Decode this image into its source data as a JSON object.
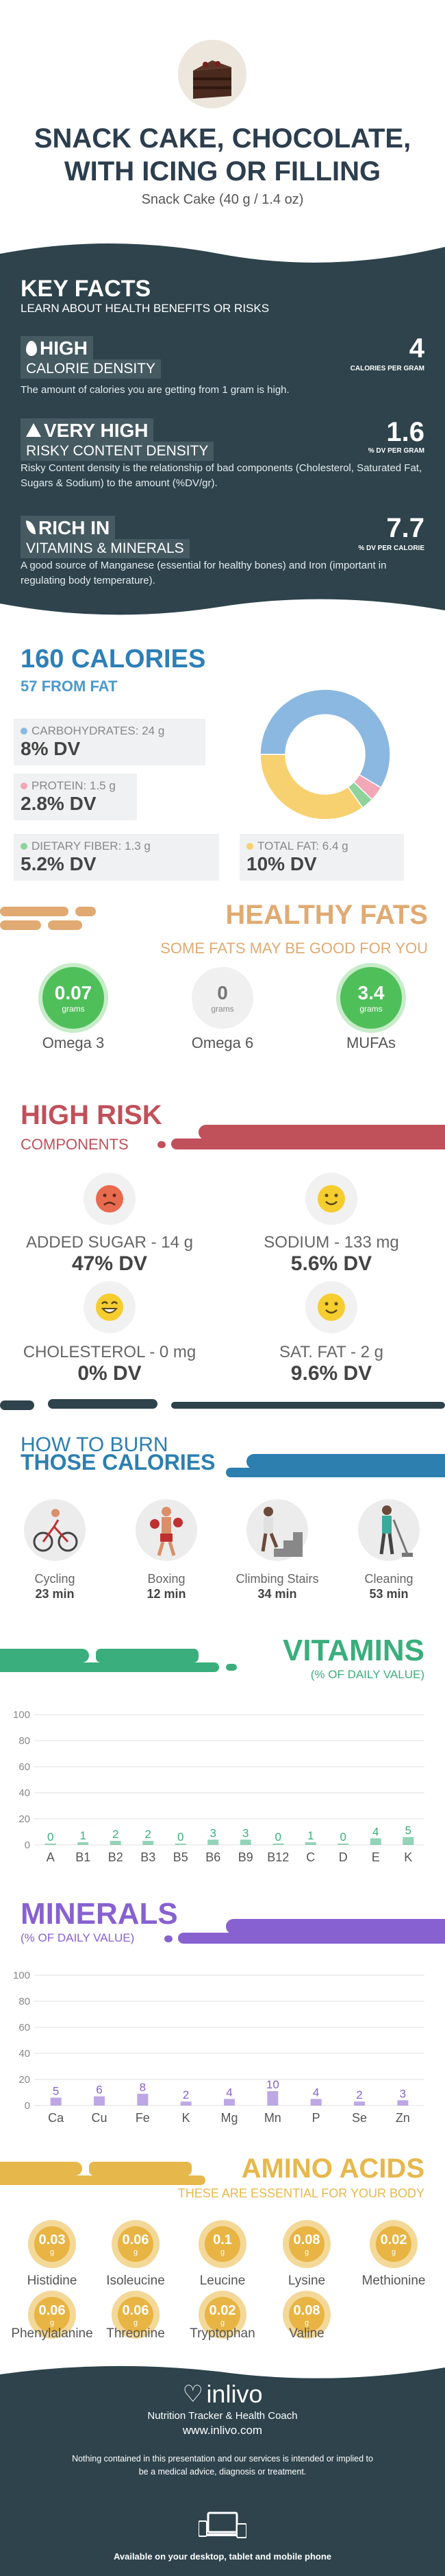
{
  "header": {
    "title_line1": "SNACK CAKE, CHOCOLATE,",
    "title_line2": "WITH ICING OR FILLING",
    "subtitle": "Snack Cake (40 g / 1.4 oz)"
  },
  "key_facts": {
    "title": "KEY FACTS",
    "subtitle": "LEARN ABOUT HEALTH BENEFITS OR RISKS",
    "facts": [
      {
        "heading": "HIGH",
        "subheading": "CALORIE DENSITY",
        "value": "4",
        "unit": "CALORIES PER GRAM",
        "description": "The amount of calories you are getting from 1 gram is high.",
        "icon": "flame-icon"
      },
      {
        "heading": "VERY HIGH",
        "subheading": "RISKY CONTENT DENSITY",
        "value": "1.6",
        "unit": "% DV PER GRAM",
        "description": "Risky Content density is the relationship of bad components (Cholesterol, Saturated Fat, Sugars & Sodium) to the amount (%DV/gr).",
        "icon": "warning-icon"
      },
      {
        "heading": "RICH  IN",
        "subheading": "VITAMINS & MINERALS",
        "value": "7.7",
        "unit": "% DV PER CALORIE",
        "description": "A good source of Manganese (essential for healthy bones) and Iron (important in regulating body temperature).",
        "icon": "leaf-icon"
      }
    ]
  },
  "calories": {
    "title": "160 CALORIES",
    "subtitle": "57 FROM FAT",
    "nutrients": [
      {
        "name": "CARBOHYDRATES: 24 g",
        "dv": "8% DV",
        "color": "#8ab8e0"
      },
      {
        "name": "PROTEIN: 1.5 g",
        "dv": "2.8% DV",
        "color": "#f2a7b7"
      },
      {
        "name": "DIETARY FIBER: 1.3 g",
        "dv": "5.2% DV",
        "color": "#8fd39b"
      },
      {
        "name": "TOTAL FAT: 6.4 g",
        "dv": "10% DV",
        "color": "#f7d070"
      }
    ],
    "donut": [
      {
        "name": "carbohydrates",
        "value": 96,
        "color": "#8ab8e0"
      },
      {
        "name": "protein",
        "value": 6,
        "color": "#f2a7b7"
      },
      {
        "name": "fiber",
        "value": 5,
        "color": "#8fd39b"
      },
      {
        "name": "fat",
        "value": 57,
        "color": "#f7d070"
      }
    ]
  },
  "healthy_fats": {
    "title": "HEALTHY FATS",
    "subtitle": "SOME FATS MAY BE GOOD FOR YOU",
    "items": [
      {
        "value": "0.07",
        "unit": "grams",
        "label": "Omega 3",
        "color": "#4fbf5a"
      },
      {
        "value": "0",
        "unit": "grams",
        "label": "Omega 6",
        "color": "#ececec"
      },
      {
        "value": "3.4",
        "unit": "grams",
        "label": "MUFAs",
        "color": "#4fbf5a"
      }
    ]
  },
  "high_risk": {
    "title": "HIGH RISK",
    "subtitle": "COMPONENTS",
    "items": [
      {
        "name": "ADDED SUGAR - 14 g",
        "dv": "47% DV",
        "face": "sad-face-icon",
        "color": "#e86a4f"
      },
      {
        "name": "SODIUM - 133 mg",
        "dv": "5.6% DV",
        "face": "smile-face-icon",
        "color": "#f5cd2f"
      },
      {
        "name": "CHOLESTEROL - 0 mg",
        "dv": "0% DV",
        "face": "grin-face-icon",
        "color": "#f5cd2f"
      },
      {
        "name": "SAT. FAT - 2 g",
        "dv": "9.6% DV",
        "face": "smile-face-icon",
        "color": "#f5cd2f"
      }
    ]
  },
  "burn": {
    "title1": "HOW TO BURN",
    "title2": "THOSE CALORIES",
    "activities": [
      {
        "name": "Cycling",
        "minutes": "23 min",
        "icon": "cycling-icon"
      },
      {
        "name": "Boxing",
        "minutes": "12 min",
        "icon": "boxing-icon"
      },
      {
        "name": "Climbing Stairs",
        "minutes": "34 min",
        "icon": "stairs-icon"
      },
      {
        "name": "Cleaning",
        "minutes": "53 min",
        "icon": "cleaning-icon"
      }
    ]
  },
  "vitamins": {
    "title": "VITAMINS",
    "subtitle": "(% OF DAILY VALUE)"
  },
  "minerals": {
    "title": "MINERALS",
    "subtitle": "(% OF DAILY VALUE)"
  },
  "chart_data": [
    {
      "type": "bar",
      "title": "VITAMINS",
      "subtitle": "(% OF DAILY VALUE)",
      "categories": [
        "A",
        "B1",
        "B2",
        "B3",
        "B5",
        "B6",
        "B9",
        "B12",
        "C",
        "D",
        "E",
        "K"
      ],
      "values": [
        0,
        1,
        2,
        2,
        0,
        3,
        3,
        0,
        1,
        0,
        4,
        5
      ],
      "ylim": [
        0,
        100
      ],
      "yticks": [
        0,
        20,
        40,
        60,
        80,
        100
      ],
      "color": "#3aae7c",
      "label_color": "#3aae7c",
      "grid": true
    },
    {
      "type": "bar",
      "title": "MINERALS",
      "subtitle": "(% OF DAILY VALUE)",
      "categories": [
        "Ca",
        "Cu",
        "Fe",
        "K",
        "Mg",
        "Mn",
        "P",
        "Se",
        "Zn"
      ],
      "values": [
        5,
        6,
        8,
        2,
        4,
        10,
        4,
        2,
        3
      ],
      "ylim": [
        0,
        100
      ],
      "yticks": [
        0,
        20,
        40,
        60,
        80,
        100
      ],
      "color": "#8761d0",
      "label_color": "#8761d0",
      "grid": true
    }
  ],
  "amino": {
    "title": "AMINO ACIDS",
    "subtitle": "THESE ARE ESSENTIAL FOR YOUR BODY",
    "items": [
      {
        "value": "0.03",
        "unit": "g",
        "label": "Histidine"
      },
      {
        "value": "0.06",
        "unit": "g",
        "label": "Isoleucine"
      },
      {
        "value": "0.1",
        "unit": "g",
        "label": "Leucine"
      },
      {
        "value": "0.08",
        "unit": "g",
        "label": "Lysine"
      },
      {
        "value": "0.02",
        "unit": "g",
        "label": "Methionine"
      },
      {
        "value": "0.06",
        "unit": "g",
        "label": "Phenylalanine"
      },
      {
        "value": "0.06",
        "unit": "g",
        "label": "Threonine"
      },
      {
        "value": "0.02",
        "unit": "g",
        "label": "Tryptophan"
      },
      {
        "value": "0.08",
        "unit": "g",
        "label": "Valine"
      }
    ]
  },
  "footer": {
    "brand": "inlivo",
    "tagline": "Nutrition Tracker & Health Coach",
    "url": "www.inlivo.com",
    "disclaimer": "Nothing contained in this presentation and our services is intended or implied to be a medical advice, diagnosis or treatment.",
    "available": "Available on your desktop, tablet and mobile phone"
  }
}
